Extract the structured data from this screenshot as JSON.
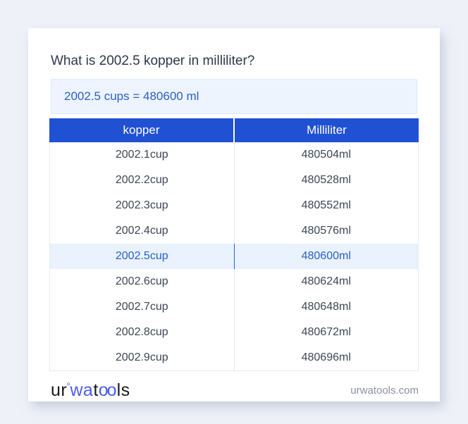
{
  "card": {
    "title": "What is 2002.5 kopper in milliliter?",
    "answer": "2002.5 cups = 480600 ml"
  },
  "table": {
    "headers": [
      "kopper",
      "Milliliter"
    ],
    "rows": [
      [
        "2002.1cup",
        "480504ml"
      ],
      [
        "2002.2cup",
        "480528ml"
      ],
      [
        "2002.3cup",
        "480552ml"
      ],
      [
        "2002.4cup",
        "480576ml"
      ],
      [
        "2002.5cup",
        "480600ml"
      ],
      [
        "2002.6cup",
        "480624ml"
      ],
      [
        "2002.7cup",
        "480648ml"
      ],
      [
        "2002.8cup",
        "480672ml"
      ],
      [
        "2002.9cup",
        "480696ml"
      ]
    ],
    "highlighted_row_index": 4
  },
  "footer": {
    "logo_ur": "ur",
    "logo_degree": "°",
    "logo_wa": "wa",
    "logo_t": "t",
    "logo_oo": "oo",
    "logo_ls": "ls",
    "domain": "urwatools.com"
  },
  "colors": {
    "header_blue": "#2051d2",
    "link_blue": "#2b5fc4",
    "highlight_bg": "#e9f2fd",
    "answer_bg": "#edf4fd",
    "page_bg": "#eef1f8"
  }
}
